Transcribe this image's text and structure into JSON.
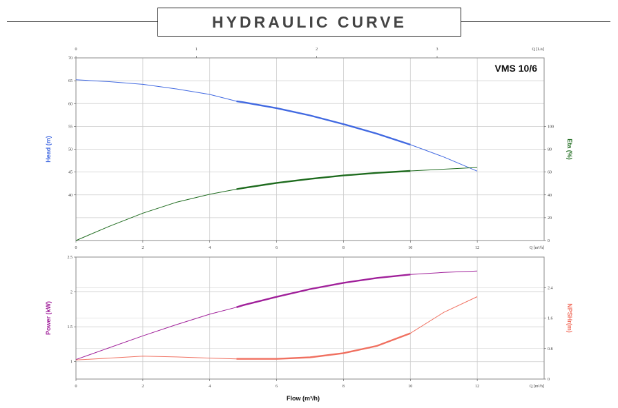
{
  "header": {
    "title": "HYDRAULIC CURVE"
  },
  "model": "VMS 10/6",
  "colors": {
    "head": "#4169e1",
    "eta": "#1e6b1e",
    "power": "#a0209a",
    "npsh": "#f07060",
    "grid": "#cccccc",
    "frame": "#888888"
  },
  "chart_data": [
    {
      "type": "line",
      "panel": "top",
      "x_axis_bottom": {
        "label": "Q [m³/h]",
        "ticks": [
          0,
          2,
          4,
          6,
          8,
          10,
          12
        ],
        "range": [
          0,
          14
        ]
      },
      "x_axis_top": {
        "label": "Q [L/s]",
        "ticks": [
          0,
          1,
          2,
          3
        ],
        "range": [
          0,
          3.889
        ]
      },
      "y_left": {
        "label": "Head (m)",
        "ticks": [
          40,
          45,
          50,
          55,
          60,
          65,
          70
        ],
        "range": [
          30,
          70
        ]
      },
      "y_right": {
        "label": "Eta (%)",
        "ticks": [
          0,
          20,
          40,
          60,
          80,
          100
        ],
        "range": [
          0,
          160
        ]
      },
      "grid": true,
      "series": [
        {
          "name": "Head (m)",
          "axis": "left",
          "x": [
            0,
            1,
            2,
            3,
            4,
            4.8,
            5,
            6,
            7,
            8,
            9,
            10,
            11,
            12
          ],
          "y": [
            65.2,
            64.8,
            64.2,
            63.2,
            62.0,
            60.5,
            60.3,
            59.0,
            57.4,
            55.5,
            53.4,
            51.0,
            48.3,
            45.2
          ],
          "bep_range": [
            4.8,
            10
          ]
        },
        {
          "name": "Eta (%)",
          "axis": "right",
          "x": [
            0,
            1,
            2,
            3,
            4,
            4.8,
            5,
            6,
            7,
            8,
            9,
            10,
            11,
            12
          ],
          "y": [
            0,
            12.5,
            24,
            33.5,
            40.5,
            45,
            46,
            50.5,
            54,
            57,
            59.3,
            61,
            62.5,
            64
          ],
          "bep_range": [
            4.8,
            10
          ]
        }
      ]
    },
    {
      "type": "line",
      "panel": "bottom",
      "x_axis_bottom": {
        "label": "Q [m³/h]",
        "ticks": [
          0,
          2,
          4,
          6,
          8,
          10,
          12
        ],
        "range": [
          0,
          14
        ]
      },
      "xlabel": "Flow (m³/h)",
      "y_left": {
        "label": "Power (kW)",
        "ticks": [
          1,
          1.5,
          2,
          2.5
        ],
        "ticklabels": [
          "1",
          "1.5",
          "2",
          "2.5"
        ],
        "range": [
          0.75,
          2.5
        ]
      },
      "y_right": {
        "label": "NPSHr(m)",
        "ticks": [
          0,
          0.8,
          1.6,
          2.4
        ],
        "ticklabels": [
          "0",
          "0.8",
          "1.6",
          "2.4"
        ],
        "range": [
          0,
          3.2
        ]
      },
      "grid": true,
      "series": [
        {
          "name": "Power (kW)",
          "axis": "left",
          "x": [
            0,
            1,
            2,
            3,
            4,
            4.8,
            5,
            6,
            7,
            8,
            9,
            10,
            11,
            12
          ],
          "y": [
            1.03,
            1.2,
            1.37,
            1.53,
            1.68,
            1.78,
            1.81,
            1.93,
            2.04,
            2.13,
            2.2,
            2.25,
            2.28,
            2.3
          ],
          "bep_range": [
            4.8,
            10
          ]
        },
        {
          "name": "NPSHr(m)",
          "axis": "right",
          "x": [
            0,
            1,
            2,
            3,
            4,
            4.8,
            5,
            6,
            7,
            8,
            9,
            10,
            11,
            12
          ],
          "y": [
            0.5,
            0.55,
            0.6,
            0.58,
            0.55,
            0.53,
            0.53,
            0.53,
            0.57,
            0.68,
            0.87,
            1.2,
            1.75,
            2.16
          ],
          "bep_range": [
            4.8,
            10
          ]
        }
      ]
    }
  ]
}
